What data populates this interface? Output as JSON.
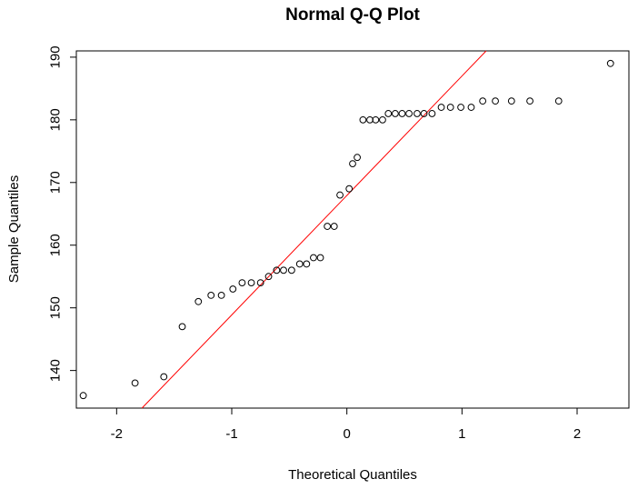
{
  "chart_data": {
    "type": "scatter",
    "title": "Normal Q-Q Plot",
    "xlabel": "Theoretical Quantiles",
    "ylabel": "Sample Quantiles",
    "xlim": [
      -2.35,
      2.45
    ],
    "ylim": [
      134,
      191
    ],
    "x_ticks": [
      -2,
      -1,
      0,
      1,
      2
    ],
    "x_tick_labels": [
      "-2",
      "-1",
      "0",
      "1",
      "2"
    ],
    "y_ticks": [
      140,
      150,
      160,
      170,
      180,
      190
    ],
    "y_tick_labels": [
      "140",
      "150",
      "160",
      "170",
      "180",
      "190"
    ],
    "grid": false,
    "marker": "open-circle",
    "reference_line": {
      "points": [
        [
          -1.78,
          134
        ],
        [
          1.21,
          191
        ]
      ],
      "color": "#ff0000"
    },
    "series": [
      {
        "points": [
          [
            -2.29,
            136
          ],
          [
            -1.84,
            138
          ],
          [
            -1.59,
            139
          ],
          [
            -1.43,
            147
          ],
          [
            -1.29,
            151
          ],
          [
            -1.18,
            152
          ],
          [
            -1.09,
            152
          ],
          [
            -0.99,
            153
          ],
          [
            -0.91,
            154
          ],
          [
            -0.83,
            154
          ],
          [
            -0.75,
            154
          ],
          [
            -0.68,
            155
          ],
          [
            -0.61,
            156
          ],
          [
            -0.55,
            156
          ],
          [
            -0.48,
            156
          ],
          [
            -0.41,
            157
          ],
          [
            -0.35,
            157
          ],
          [
            -0.29,
            158
          ],
          [
            -0.23,
            158
          ],
          [
            -0.17,
            163
          ],
          [
            -0.11,
            163
          ],
          [
            -0.06,
            168
          ],
          [
            0.02,
            169
          ],
          [
            0.05,
            173
          ],
          [
            0.09,
            174
          ],
          [
            0.14,
            180
          ],
          [
            0.2,
            180
          ],
          [
            0.25,
            180
          ],
          [
            0.31,
            180
          ],
          [
            0.36,
            181
          ],
          [
            0.42,
            181
          ],
          [
            0.48,
            181
          ],
          [
            0.54,
            181
          ],
          [
            0.61,
            181
          ],
          [
            0.67,
            181
          ],
          [
            0.74,
            181
          ],
          [
            0.82,
            182
          ],
          [
            0.9,
            182
          ],
          [
            0.99,
            182
          ],
          [
            1.08,
            182
          ],
          [
            1.18,
            183
          ],
          [
            1.29,
            183
          ],
          [
            1.43,
            183
          ],
          [
            1.59,
            183
          ],
          [
            1.84,
            183
          ],
          [
            2.29,
            189
          ]
        ]
      }
    ]
  },
  "colors": {
    "line": "#ff0000",
    "points": "#000000",
    "frame": "#000000"
  }
}
